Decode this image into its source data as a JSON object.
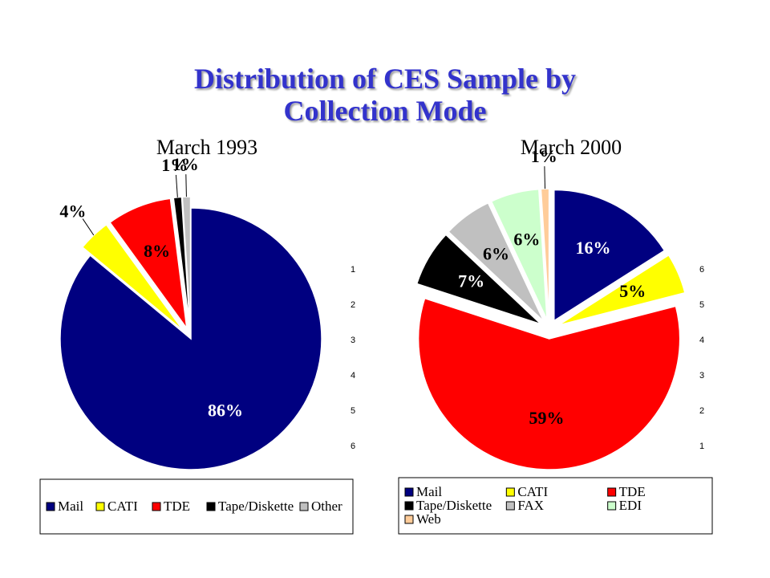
{
  "title": "Distribution of CES Sample by Collection Mode",
  "chart_data": [
    {
      "type": "pie",
      "title": "March 1993",
      "categories": [
        "Mail",
        "CATI",
        "TDE",
        "Tape/Diskette",
        "Other"
      ],
      "values": [
        86,
        4,
        8,
        1,
        1
      ],
      "value_labels": [
        "86%",
        "4%",
        "8%",
        "1%",
        "1%"
      ],
      "colors": [
        "#000080",
        "#ffff00",
        "#ff0000",
        "#000000",
        "#c0c0c0"
      ],
      "side_labels": [
        "1",
        "2",
        "3",
        "4",
        "5",
        "6"
      ]
    },
    {
      "type": "pie",
      "title": "March 2000",
      "categories": [
        "Mail",
        "CATI",
        "TDE",
        "Tape/Diskette",
        "FAX",
        "EDI",
        "Web"
      ],
      "values": [
        16,
        5,
        59,
        7,
        6,
        6,
        1
      ],
      "value_labels": [
        "16%",
        "5%",
        "59%",
        "7%",
        "6%",
        "6%",
        "1%"
      ],
      "colors": [
        "#000080",
        "#ffff00",
        "#ff0000",
        "#000000",
        "#c0c0c0",
        "#ccffcc",
        "#ffcc99"
      ],
      "side_labels": [
        "6",
        "5",
        "4",
        "3",
        "2",
        "1"
      ]
    }
  ]
}
